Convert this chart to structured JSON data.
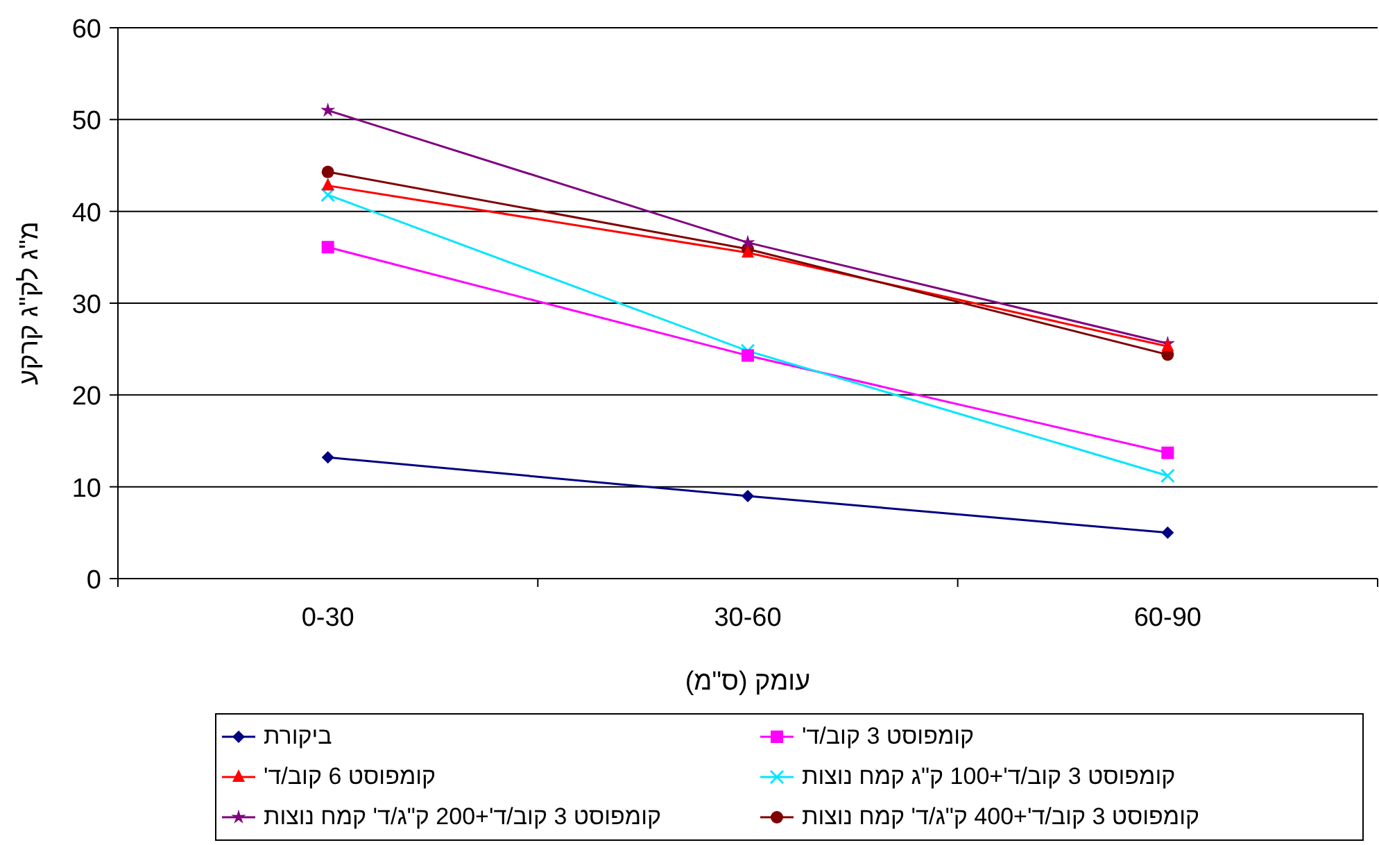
{
  "chart_data": {
    "type": "line",
    "xlabel": "עומק (ס\"מ)",
    "ylabel": "מ\"ג לק\"ג קרקע",
    "categories": [
      "0-30",
      "30-60",
      "60-90"
    ],
    "ylim": [
      0,
      60
    ],
    "yticks": [
      0,
      10,
      20,
      30,
      40,
      50,
      60
    ],
    "grid": "y",
    "legend": "bottom",
    "series": [
      {
        "name": "ביקורת",
        "color": "#000080",
        "marker": "diamond",
        "values": [
          13.2,
          9.0,
          5.0
        ]
      },
      {
        "name": "קומפוסט 3 קוב/ד'",
        "color": "#ff00ff",
        "marker": "square",
        "values": [
          36.1,
          24.3,
          13.7
        ]
      },
      {
        "name": "קומפוסט 6 קוב/ד'",
        "color": "#ff0000",
        "marker": "triangle",
        "values": [
          42.8,
          35.5,
          25.3
        ]
      },
      {
        "name": "קומפוסט 3 קוב/ד'+100 ק\"ג קמח נוצות",
        "color": "#00e5ff",
        "marker": "cross",
        "values": [
          41.8,
          24.8,
          11.2
        ]
      },
      {
        "name": "קומפוסט 3 קוב/ד'+200 ק\"ג/ד' קמח נוצות",
        "color": "#800080",
        "marker": "star",
        "values": [
          51.0,
          36.6,
          25.6
        ]
      },
      {
        "name": "קומפוסט 3 קוב/ד'+400 ק\"ג/ד' קמח נוצות",
        "color": "#800000",
        "marker": "circle",
        "values": [
          44.3,
          35.9,
          24.4
        ]
      }
    ]
  }
}
